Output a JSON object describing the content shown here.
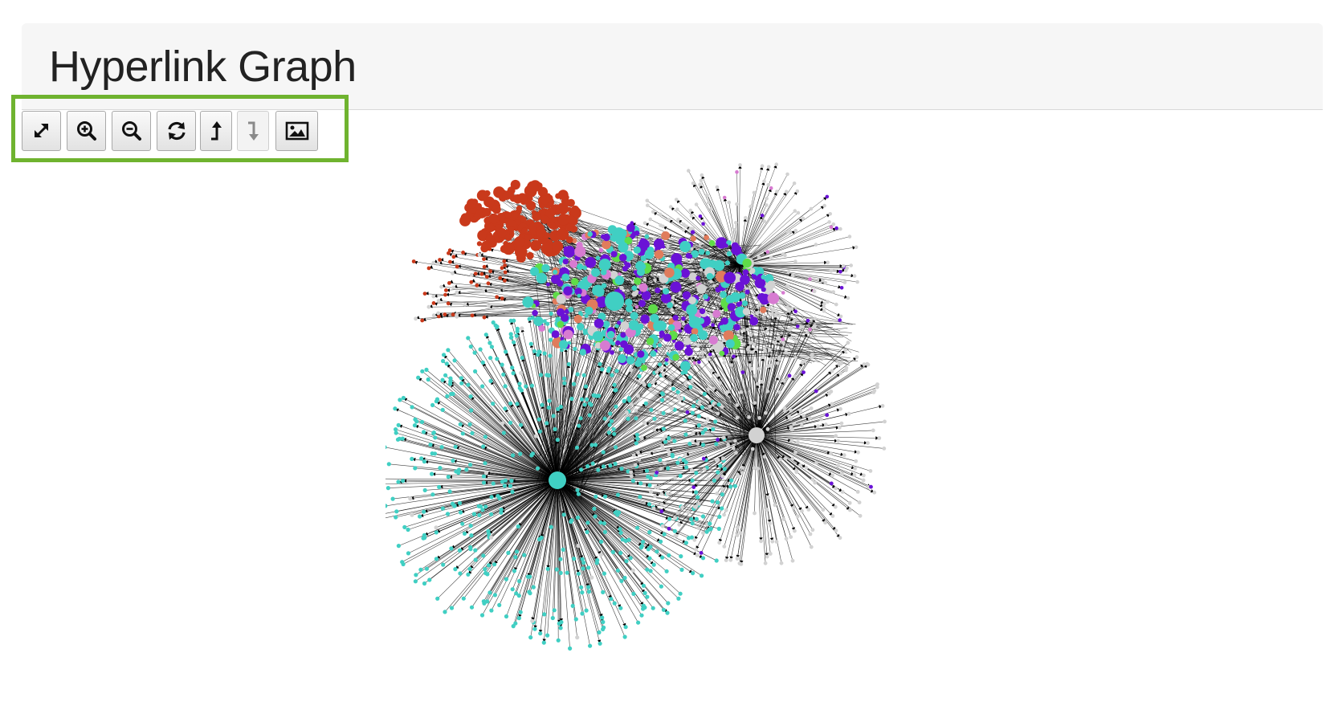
{
  "page": {
    "title": "Hyperlink Graph"
  },
  "toolbar": {
    "buttons": [
      {
        "name": "fit-to-screen-button",
        "icon": "expand-arrows-icon",
        "enabled": true
      },
      {
        "name": "zoom-in-button",
        "icon": "zoom-in-icon",
        "enabled": true
      },
      {
        "name": "zoom-out-button",
        "icon": "zoom-out-icon",
        "enabled": true
      },
      {
        "name": "refresh-button",
        "icon": "refresh-icon",
        "enabled": true
      },
      {
        "name": "up-level-button",
        "icon": "arrow-up-icon",
        "enabled": true
      },
      {
        "name": "down-level-button",
        "icon": "arrow-down-icon",
        "enabled": false
      },
      {
        "name": "save-image-button",
        "icon": "image-icon",
        "enabled": true
      }
    ]
  },
  "graph": {
    "colors": {
      "teal": "#40cfc3",
      "red": "#c9391b",
      "purple": "#6a12d6",
      "gray": "#d2d2d2",
      "pink": "#d77bd1",
      "green": "#5fdc48",
      "salmon": "#e07c5c",
      "edge": "#000000"
    }
  }
}
